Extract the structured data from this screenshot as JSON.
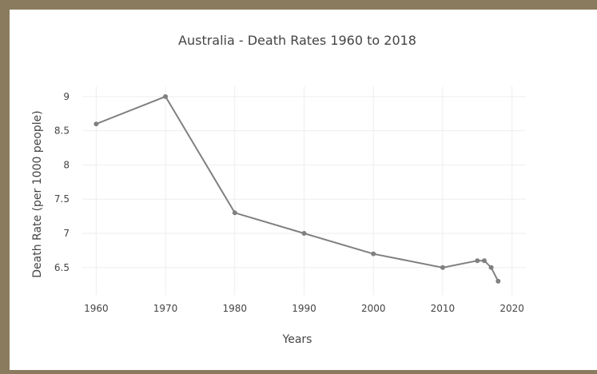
{
  "chart_data": {
    "type": "line",
    "title": "Australia - Death Rates 1960 to 2018",
    "xlabel": "Years",
    "ylabel": "Death Rate (per 1000 people)",
    "x": [
      1960,
      1970,
      1980,
      1990,
      2000,
      2010,
      2015,
      2016,
      2017,
      2018
    ],
    "y": [
      8.6,
      9.0,
      7.3,
      7.0,
      6.7,
      6.5,
      6.6,
      6.6,
      6.5,
      6.3
    ],
    "xlim": [
      1958,
      2022
    ],
    "ylim": [
      6.1,
      9.15
    ],
    "x_ticks": [
      "1960",
      "1970",
      "1980",
      "1990",
      "2000",
      "2010",
      "2020"
    ],
    "y_ticks": [
      "9",
      "8.5",
      "8",
      "7.5",
      "7",
      "6.5"
    ],
    "grid": true,
    "line_color": "#808080",
    "frame_color": "#8b7b5e"
  }
}
